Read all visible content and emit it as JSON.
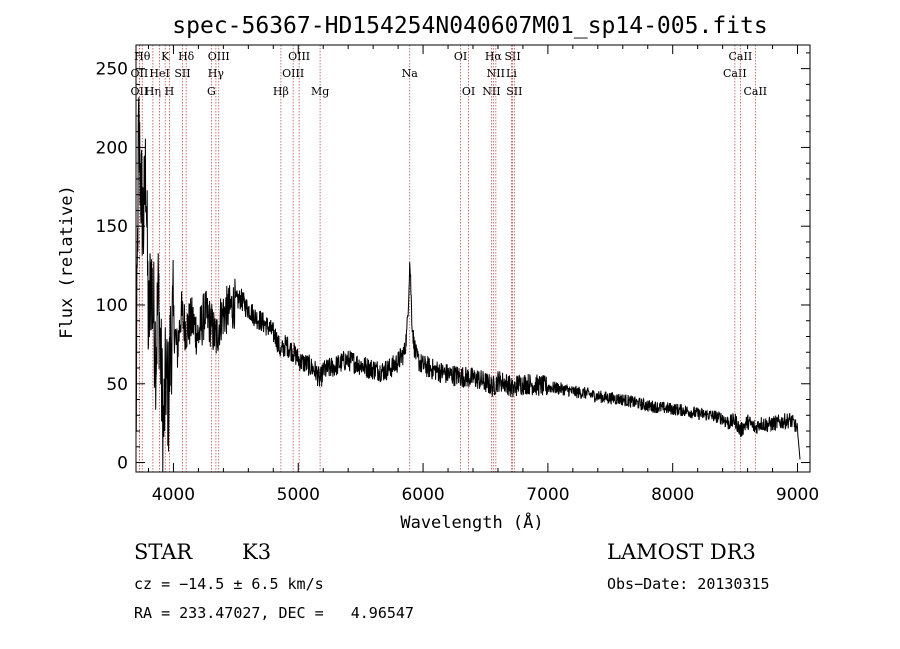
{
  "chart_data": {
    "type": "line",
    "title": "spec-56367-HD154254N040607M01_sp14-005.fits",
    "xlabel": "Wavelength (Å)",
    "ylabel": "Flux (relative)",
    "xlim": [
      3700,
      9100
    ],
    "ylim": [
      -6,
      265
    ],
    "xticks": [
      4000,
      5000,
      6000,
      7000,
      8000,
      9000
    ],
    "yticks": [
      0,
      50,
      100,
      150,
      200,
      250
    ],
    "grid": false,
    "series": [
      {
        "values_x": [
          3700,
          3720,
          3740,
          3760,
          3780,
          3800,
          3820,
          3840,
          3860,
          3880,
          3900,
          3920,
          3940,
          3960,
          3980,
          4000,
          4030,
          4060,
          4100,
          4150,
          4200,
          4250,
          4300,
          4340,
          4380,
          4420,
          4460,
          4500,
          4540,
          4580,
          4620,
          4660,
          4700,
          4760,
          4820,
          4861,
          4900,
          4960,
          5020,
          5080,
          5140,
          5175,
          5200,
          5260,
          5320,
          5380,
          5440,
          5500,
          5560,
          5620,
          5680,
          5740,
          5800,
          5850,
          5870,
          5885,
          5893,
          5900,
          5910,
          5925,
          5950,
          5990,
          6050,
          6120,
          6200,
          6280,
          6360,
          6440,
          6520,
          6563,
          6600,
          6680,
          6720,
          6760,
          6840,
          6920,
          7000,
          7100,
          7200,
          7300,
          7400,
          7500,
          7600,
          7700,
          7800,
          7900,
          8000,
          8100,
          8200,
          8300,
          8400,
          8450,
          8500,
          8542,
          8600,
          8662,
          8700,
          8760,
          8820,
          8880,
          8940,
          8980,
          9000,
          9020
        ],
        "values_y": [
          10,
          210,
          175,
          150,
          190,
          80,
          120,
          95,
          70,
          110,
          60,
          20,
          55,
          40,
          80,
          90,
          70,
          95,
          85,
          90,
          80,
          95,
          88,
          78,
          92,
          96,
          98,
          102,
          104,
          99,
          96,
          92,
          90,
          86,
          80,
          70,
          75,
          70,
          64,
          62,
          58,
          52,
          58,
          60,
          62,
          65,
          64,
          62,
          60,
          59,
          58,
          60,
          64,
          70,
          82,
          108,
          128,
          116,
          92,
          76,
          66,
          62,
          60,
          58,
          56,
          55,
          54,
          53,
          50,
          48,
          52,
          50,
          46,
          50,
          50,
          49,
          48,
          47,
          45,
          44,
          42,
          41,
          40,
          38,
          36,
          35,
          34,
          33,
          31,
          30,
          28,
          25,
          27,
          20,
          26,
          22,
          25,
          24,
          25,
          26,
          27,
          24,
          20,
          2
        ]
      }
    ],
    "lines": [
      {
        "label": "OII",
        "wave": 3727,
        "row": 2
      },
      {
        "label": "Hθ",
        "wave": 3750,
        "row": 0
      },
      {
        "label": "OII",
        "wave": 3727,
        "row": 1
      },
      {
        "label": "Hη",
        "wave": 3835,
        "row": 2
      },
      {
        "label": "HeI",
        "wave": 3889,
        "row": 1
      },
      {
        "label": "K",
        "wave": 3934,
        "row": 0
      },
      {
        "label": "H",
        "wave": 3968,
        "row": 2
      },
      {
        "label": "SII",
        "wave": 4072,
        "row": 1
      },
      {
        "label": "Hδ",
        "wave": 4102,
        "row": 0
      },
      {
        "label": "G",
        "wave": 4304,
        "row": 2
      },
      {
        "label": "Hγ",
        "wave": 4340,
        "row": 1
      },
      {
        "label": "OIII",
        "wave": 4363,
        "row": 0
      },
      {
        "label": "Hβ",
        "wave": 4861,
        "row": 2
      },
      {
        "label": "OIII",
        "wave": 4959,
        "row": 1
      },
      {
        "label": "OIII",
        "wave": 5007,
        "row": 0
      },
      {
        "label": "Mg",
        "wave": 5175,
        "row": 2
      },
      {
        "label": "Na",
        "wave": 5893,
        "row": 1
      },
      {
        "label": "OI",
        "wave": 6300,
        "row": 0
      },
      {
        "label": "OI",
        "wave": 6364,
        "row": 2
      },
      {
        "label": "NII",
        "wave": 6548,
        "row": 2
      },
      {
        "label": "NII",
        "wave": 6583,
        "row": 1
      },
      {
        "label": "Hα",
        "wave": 6563,
        "row": 0
      },
      {
        "label": "SII",
        "wave": 6717,
        "row": 0
      },
      {
        "label": "SII",
        "wave": 6731,
        "row": 2
      },
      {
        "label": "Li",
        "wave": 6708,
        "row": 1
      },
      {
        "label": "CaII",
        "wave": 8498,
        "row": 1
      },
      {
        "label": "CaII",
        "wave": 8542,
        "row": 0
      },
      {
        "label": "CaII",
        "wave": 8662,
        "row": 2
      }
    ],
    "line_color": "#c0504d"
  },
  "info": {
    "class": "STAR",
    "subclass": "K3",
    "survey": "LAMOST DR3",
    "cz": "cz = −14.5 ± 6.5 km/s",
    "obsdate": "Obs−Date: 20130315",
    "radec": "RA = 233.47027, DEC =   4.96547"
  }
}
